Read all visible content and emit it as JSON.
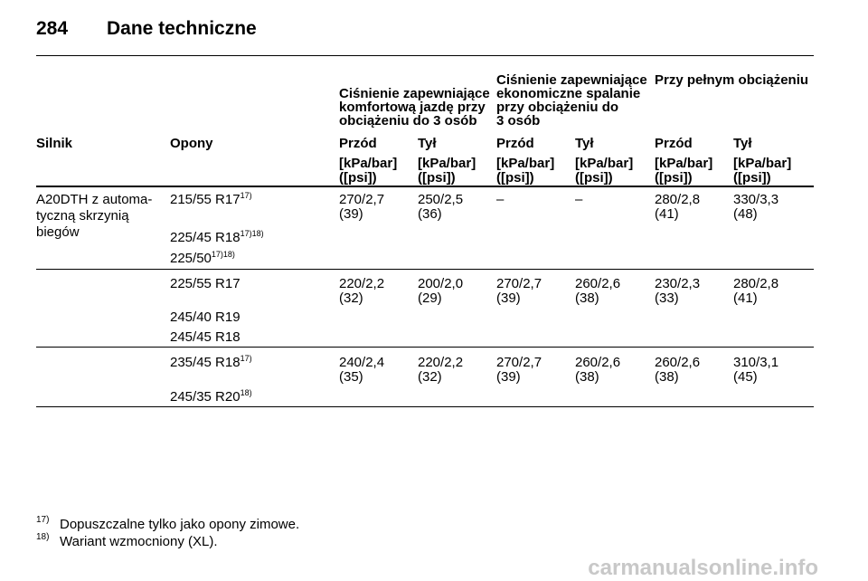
{
  "header": {
    "page_number": "284",
    "title": "Dane techniczne"
  },
  "table": {
    "group_headers": [
      {
        "lines": [
          "Ciśnienie zapewniające",
          "komfortową jazdę przy",
          "obciążeniu do 3 osób"
        ]
      },
      {
        "lines": [
          "Ciśnienie zapewniające",
          "ekonomiczne spalanie",
          "przy obciążeniu do",
          "3 osób"
        ]
      },
      {
        "lines": [
          "Przy pełnym obciążeniu"
        ]
      }
    ],
    "columns": [
      "Silnik",
      "Opony",
      "Przód",
      "Tył",
      "Przód",
      "Tył",
      "Przód",
      "Tył"
    ],
    "units": [
      [
        "[kPa/bar]",
        "([psi])"
      ],
      [
        "[kPa/bar]",
        "([psi])"
      ],
      [
        "[kPa/bar]",
        "([psi])"
      ],
      [
        "[kPa/bar]",
        "([psi])"
      ],
      [
        "[kPa/bar]",
        "([psi])"
      ],
      [
        "[kPa/bar]",
        "([psi])"
      ]
    ],
    "engine": [
      "A20DTH z automa-",
      "tyczną skrzynią",
      "biegów"
    ],
    "groups": [
      {
        "tires": [
          {
            "name": "215/55 R17",
            "note": "17)"
          },
          {
            "name": "225/45 R18",
            "note": "17)18)"
          },
          {
            "name": "225/50",
            "note": "17)18)"
          }
        ],
        "pressures": [
          [
            "270/2,7",
            "(39)"
          ],
          [
            "250/2,5",
            "(36)"
          ],
          [
            "–"
          ],
          [
            "–"
          ],
          [
            "280/2,8",
            "(41)"
          ],
          [
            "330/3,3",
            "(48)"
          ]
        ]
      },
      {
        "tires": [
          {
            "name": "225/55 R17"
          },
          {
            "name": "245/40 R19"
          },
          {
            "name": "245/45 R18"
          }
        ],
        "pressures": [
          [
            "220/2,2",
            "(32)"
          ],
          [
            "200/2,0",
            "(29)"
          ],
          [
            "270/2,7",
            "(39)"
          ],
          [
            "260/2,6",
            "(38)"
          ],
          [
            "230/2,3",
            "(33)"
          ],
          [
            "280/2,8",
            "(41)"
          ]
        ]
      },
      {
        "tires": [
          {
            "name": "235/45 R18",
            "note": "17)"
          },
          {
            "name": "245/35 R20",
            "note": "18)"
          }
        ],
        "pressures": [
          [
            "240/2,4",
            "(35)"
          ],
          [
            "220/2,2",
            "(32)"
          ],
          [
            "270/2,7",
            "(39)"
          ],
          [
            "260/2,6",
            "(38)"
          ],
          [
            "260/2,6",
            "(38)"
          ],
          [
            "310/3,1",
            "(45)"
          ]
        ]
      }
    ]
  },
  "footnotes": [
    {
      "mark": "17)",
      "text": "Dopuszczalne tylko jako opony zimowe."
    },
    {
      "mark": "18)",
      "text": "Wariant wzmocniony (XL)."
    }
  ],
  "watermark": "carmanualsonline.info"
}
